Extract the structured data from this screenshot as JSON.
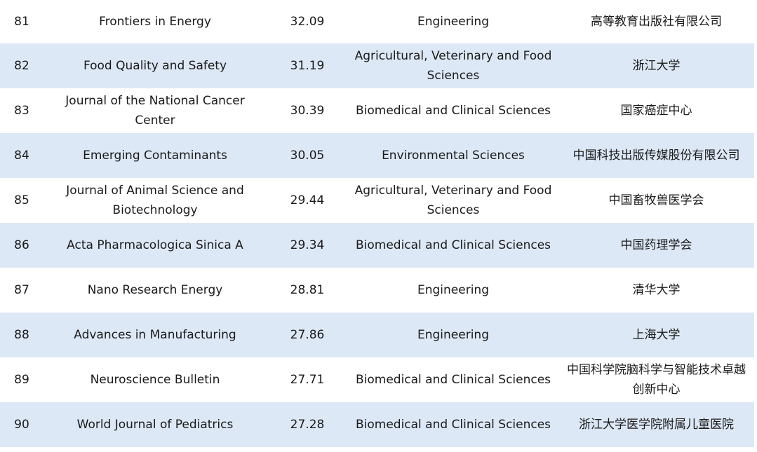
{
  "rows": [
    {
      "rank": "81",
      "title": "Frontiers in Energy",
      "score": "32.09",
      "field": "Engineering",
      "publisher": "高等教育出版社有限公司"
    },
    {
      "rank": "82",
      "title": "Food Quality and Safety",
      "score": "31.19",
      "field": "Agricultural, Veterinary and Food Sciences",
      "publisher": "浙江大学"
    },
    {
      "rank": "83",
      "title": "Journal of the National Cancer Center",
      "score": "30.39",
      "field": "Biomedical and Clinical Sciences",
      "publisher": "国家癌症中心"
    },
    {
      "rank": "84",
      "title": "Emerging Contaminants",
      "score": "30.05",
      "field": "Environmental Sciences",
      "publisher": "中国科技出版传媒股份有限公司"
    },
    {
      "rank": "85",
      "title": "Journal of Animal Science and Biotechnology",
      "score": "29.44",
      "field": "Agricultural, Veterinary and Food Sciences",
      "publisher": "中国畜牧兽医学会"
    },
    {
      "rank": "86",
      "title": "Acta Pharmacologica Sinica A",
      "score": "29.34",
      "field": "Biomedical and Clinical Sciences",
      "publisher": "中国药理学会"
    },
    {
      "rank": "87",
      "title": "Nano Research Energy",
      "score": "28.81",
      "field": "Engineering",
      "publisher": "清华大学"
    },
    {
      "rank": "88",
      "title": "Advances in Manufacturing",
      "score": "27.86",
      "field": "Engineering",
      "publisher": "上海大学"
    },
    {
      "rank": "89",
      "title": "Neuroscience Bulletin",
      "score": "27.71",
      "field": "Biomedical and Clinical Sciences",
      "publisher": "中国科学院脑科学与智能技术卓越创新中心"
    },
    {
      "rank": "90",
      "title": "World Journal of Pediatrics",
      "score": "27.28",
      "field": "Biomedical and Clinical Sciences",
      "publisher": "浙江大学医学院附属儿童医院"
    }
  ],
  "colors": {
    "stripe": "#dde8f6",
    "text": "#1a1a1a"
  }
}
